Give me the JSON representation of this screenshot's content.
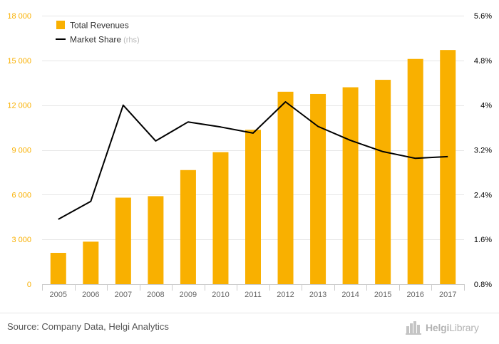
{
  "chart_data": {
    "type": "bar+line",
    "categories": [
      "2005",
      "2006",
      "2007",
      "2008",
      "2009",
      "2010",
      "2011",
      "2012",
      "2013",
      "2014",
      "2015",
      "2016",
      "2017"
    ],
    "series": [
      {
        "name": "Total Revenues",
        "type": "bar",
        "axis": "left",
        "color": "#f9b000",
        "values": [
          2100,
          2850,
          5800,
          5900,
          7650,
          8850,
          10350,
          12900,
          12750,
          13200,
          13700,
          15100,
          15700
        ]
      },
      {
        "name": "Market Share",
        "type": "line",
        "axis": "right",
        "color": "#000000",
        "values": [
          0.0196,
          0.0228,
          0.04,
          0.0336,
          0.037,
          0.0361,
          0.035,
          0.0406,
          0.0362,
          0.0337,
          0.0317,
          0.0305,
          0.0308
        ]
      }
    ],
    "legend": {
      "placement": "top-left",
      "items": [
        {
          "label": "Total Revenues",
          "suffix": "",
          "marker": "square",
          "color": "#f9b000"
        },
        {
          "label": "Market Share",
          "suffix": "(rhs)",
          "marker": "line",
          "color": "#000000"
        }
      ]
    },
    "y_left": {
      "ticks": [
        0,
        3000,
        6000,
        9000,
        12000,
        15000,
        18000
      ],
      "tick_labels": [
        "0",
        "3 000",
        "6 000",
        "9 000",
        "12 000",
        "15 000",
        "18 000"
      ],
      "range": [
        0,
        18000
      ],
      "color": "#f9b000"
    },
    "y_right": {
      "ticks": [
        0.008,
        0.016,
        0.024,
        0.032,
        0.04,
        0.048,
        0.056
      ],
      "tick_labels": [
        "0.8%",
        "1.6%",
        "2.4%",
        "3.2%",
        "4%",
        "4.8%",
        "5.6%"
      ],
      "range": [
        0.008,
        0.056
      ],
      "color": "#000000"
    },
    "grid": "horizontal",
    "xlabel": "",
    "ylabel": ""
  },
  "footer": {
    "source": "Source: Company Data, Helgi Analytics",
    "brand_prefix": "Helgi",
    "brand_suffix": "Library",
    "brand_icon": "building-icon"
  }
}
